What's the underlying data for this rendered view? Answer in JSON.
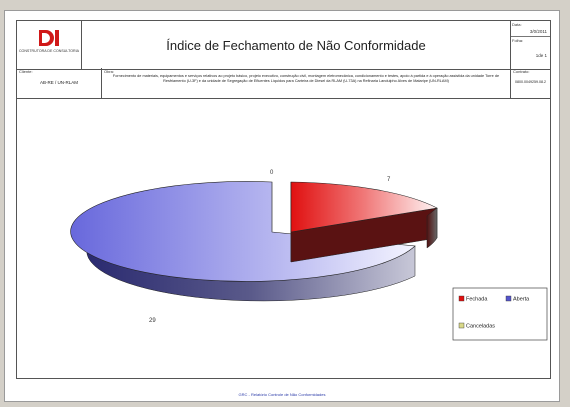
{
  "header": {
    "logo_text": "DI",
    "logo_sub": "CONSTRUTORA DE CONSULTORIA",
    "title": "Índice de Fechamento de  Não Conformidade",
    "date_label": "Data:",
    "date_value": "3/0/2011",
    "page_label": "Folha:",
    "page_value": "1de 1"
  },
  "info": {
    "client_label": "Cliente:",
    "client_value": "AB-RE / UN-RLAM",
    "work_label": "Obra:",
    "work_value": "Fornecimento de materiais, equipamentos e serviços relativos ao projeto básico, projeto executivo, construção civil, montagem eletromecânica, condicionamento e testes, apoio à partida e à operação assistida da unidade Torre de Resfriamento (U-3F) e da unidade de Segregação de Efluentes Líquidos para Carteira de Diesel da RLAM (U-73A) na Refinaria Landulpho Alves de Mataripe (UN-RLAM)",
    "contract_label": "Contrato:",
    "contract_value": "0800.0049259.08.2"
  },
  "chart_data": {
    "type": "pie",
    "title": "",
    "categories": [
      "Fechada",
      "Aberta",
      "Cancelados"
    ],
    "values": [
      7,
      29,
      0
    ],
    "colors": [
      "#e01010",
      "#6a6ad8",
      "#e8e8b0"
    ],
    "three_d": true,
    "legend": "right"
  },
  "legend": {
    "items": [
      {
        "label": "Fechada",
        "color": "#e01010"
      },
      {
        "label": "Aberta",
        "color": "#5555cc"
      },
      {
        "label": "Canceladas",
        "color": "#d8d888"
      }
    ]
  },
  "footer": {
    "text": "GRC - Relatório Controle de Não Conformidades"
  }
}
